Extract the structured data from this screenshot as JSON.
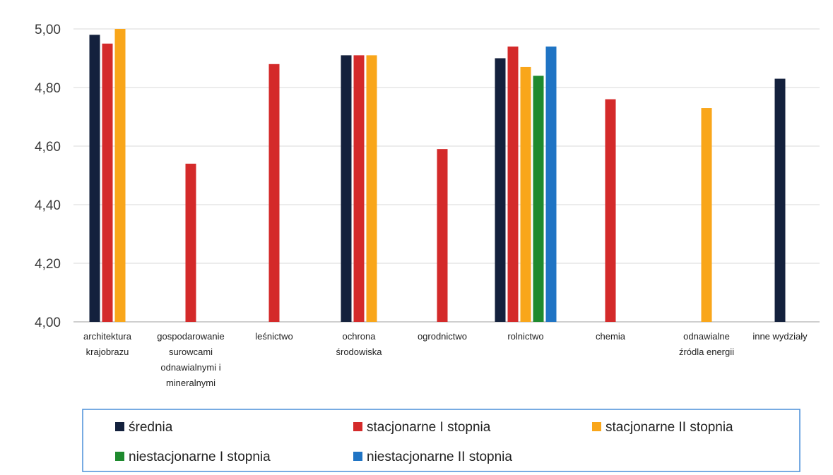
{
  "chart_data": {
    "type": "bar",
    "title": "",
    "xlabel": "",
    "ylabel": "",
    "ylim": [
      4.0,
      5.0
    ],
    "y_ticks": [
      "4,00",
      "4,20",
      "4,40",
      "4,60",
      "4,80",
      "5,00"
    ],
    "y_tick_values": [
      4.0,
      4.2,
      4.4,
      4.6,
      4.8,
      5.0
    ],
    "grid": true,
    "legend_position": "bottom",
    "categories": [
      [
        "architektura",
        "krajobrazu"
      ],
      [
        "gospodarowanie",
        "surowcami",
        "odnawialnymi i",
        "mineralnymi"
      ],
      [
        "leśnictwo"
      ],
      [
        "ochrona",
        "środowiska"
      ],
      [
        "ogrodnictwo"
      ],
      [
        "rolnictwo"
      ],
      [
        "chemia"
      ],
      [
        "odnawialne",
        "źródla energii"
      ],
      [
        "inne wydziały"
      ]
    ],
    "series": [
      {
        "name": "średnia",
        "color": "#14213d",
        "values": [
          4.98,
          null,
          null,
          4.91,
          null,
          4.9,
          null,
          null,
          4.83
        ]
      },
      {
        "name": "stacjonarne I stopnia",
        "color": "#d42a2a",
        "values": [
          4.95,
          4.54,
          4.88,
          4.91,
          4.59,
          4.94,
          4.76,
          null,
          null
        ]
      },
      {
        "name": "stacjonarne II stopnia",
        "color": "#f9a61a",
        "values": [
          5.0,
          null,
          null,
          4.91,
          null,
          4.87,
          null,
          4.73,
          null
        ]
      },
      {
        "name": "niestacjonarne I stopnia",
        "color": "#1e8a2e",
        "values": [
          null,
          null,
          null,
          null,
          null,
          4.84,
          null,
          null,
          null
        ]
      },
      {
        "name": "niestacjonarne II stopnia",
        "color": "#1f74c4",
        "values": [
          null,
          null,
          null,
          null,
          null,
          4.94,
          null,
          null,
          null
        ]
      }
    ],
    "colors": {
      "grid": "#d9d9d9",
      "legend_border": "#4a8fd8"
    }
  }
}
